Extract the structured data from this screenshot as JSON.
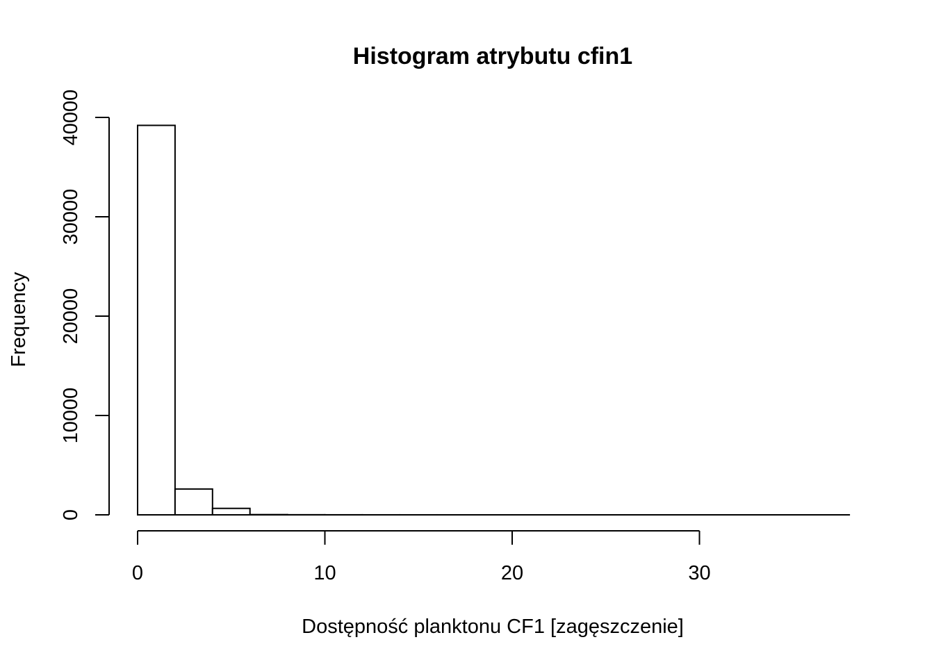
{
  "chart_data": {
    "type": "bar",
    "title": "Histogram atrybutu cfin1",
    "xlabel": "Dostępność planktonu CF1 [zagęszczenie]",
    "ylabel": "Frequency",
    "bins": [
      {
        "x0": 0,
        "x1": 2,
        "count": 39200
      },
      {
        "x0": 2,
        "x1": 4,
        "count": 2600
      },
      {
        "x0": 4,
        "x1": 6,
        "count": 650
      },
      {
        "x0": 6,
        "x1": 8,
        "count": 25
      },
      {
        "x0": 8,
        "x1": 10,
        "count": 10
      },
      {
        "x0": 10,
        "x1": 12,
        "count": 5
      },
      {
        "x0": 12,
        "x1": 14,
        "count": 3
      },
      {
        "x0": 14,
        "x1": 16,
        "count": 2
      },
      {
        "x0": 16,
        "x1": 18,
        "count": 1
      },
      {
        "x0": 18,
        "x1": 20,
        "count": 1
      },
      {
        "x0": 20,
        "x1": 22,
        "count": 1
      },
      {
        "x0": 22,
        "x1": 24,
        "count": 1
      },
      {
        "x0": 24,
        "x1": 26,
        "count": 1
      },
      {
        "x0": 26,
        "x1": 28,
        "count": 1
      },
      {
        "x0": 28,
        "x1": 30,
        "count": 1
      },
      {
        "x0": 30,
        "x1": 32,
        "count": 1
      },
      {
        "x0": 32,
        "x1": 34,
        "count": 1
      },
      {
        "x0": 34,
        "x1": 36,
        "count": 1
      },
      {
        "x0": 36,
        "x1": 38,
        "count": 1
      }
    ],
    "xlim": [
      0,
      38
    ],
    "ylim": [
      0,
      40000
    ],
    "xticks": [
      {
        "value": 0,
        "label": "0"
      },
      {
        "value": 10,
        "label": "10"
      },
      {
        "value": 20,
        "label": "20"
      },
      {
        "value": 30,
        "label": "30"
      }
    ],
    "yticks": [
      {
        "value": 0,
        "label": "0"
      },
      {
        "value": 10000,
        "label": "10000"
      },
      {
        "value": 20000,
        "label": "20000"
      },
      {
        "value": 30000,
        "label": "30000"
      },
      {
        "value": 40000,
        "label": "40000"
      }
    ],
    "grid": false,
    "legend": "none",
    "colors": {
      "bar_fill": "#ffffff",
      "bar_stroke": "#000000",
      "axis": "#000000"
    }
  }
}
